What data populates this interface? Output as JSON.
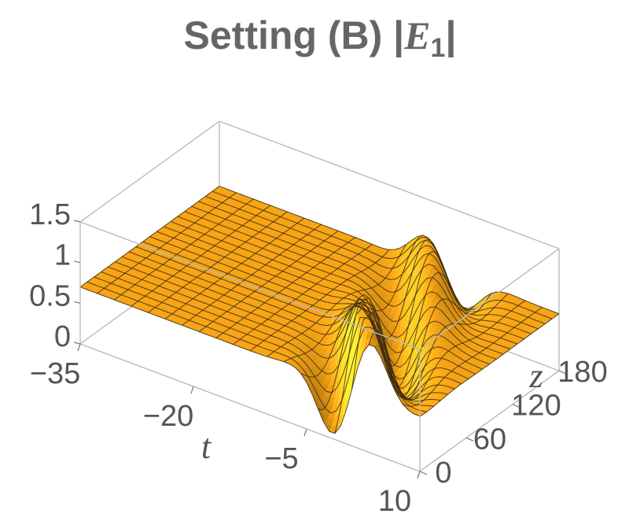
{
  "chart_data": {
    "type": "surface3d",
    "title": {
      "prefix": "Setting (B) |",
      "variable": "E",
      "subscript": "1",
      "suffix": "|"
    },
    "xlabel": "t",
    "ylabel": "z",
    "zlabel": "",
    "xlim": [
      -35,
      10
    ],
    "ylim": [
      0,
      180
    ],
    "zlim": [
      0,
      1.5
    ],
    "x_ticks": [
      "−35",
      "−20",
      "−5",
      "10"
    ],
    "y_ticks": [
      "0",
      "60",
      "120",
      "180"
    ],
    "z_ticks": [
      "0",
      "0.5",
      "1",
      "1.5"
    ],
    "background_level": 0.7,
    "peak_value": 1.45,
    "min_value": 0.0,
    "mesh_lines": 21,
    "surface_color": "#f7a516",
    "mesh_color": "#3a2a10",
    "box_color": "#bbbbbb"
  }
}
